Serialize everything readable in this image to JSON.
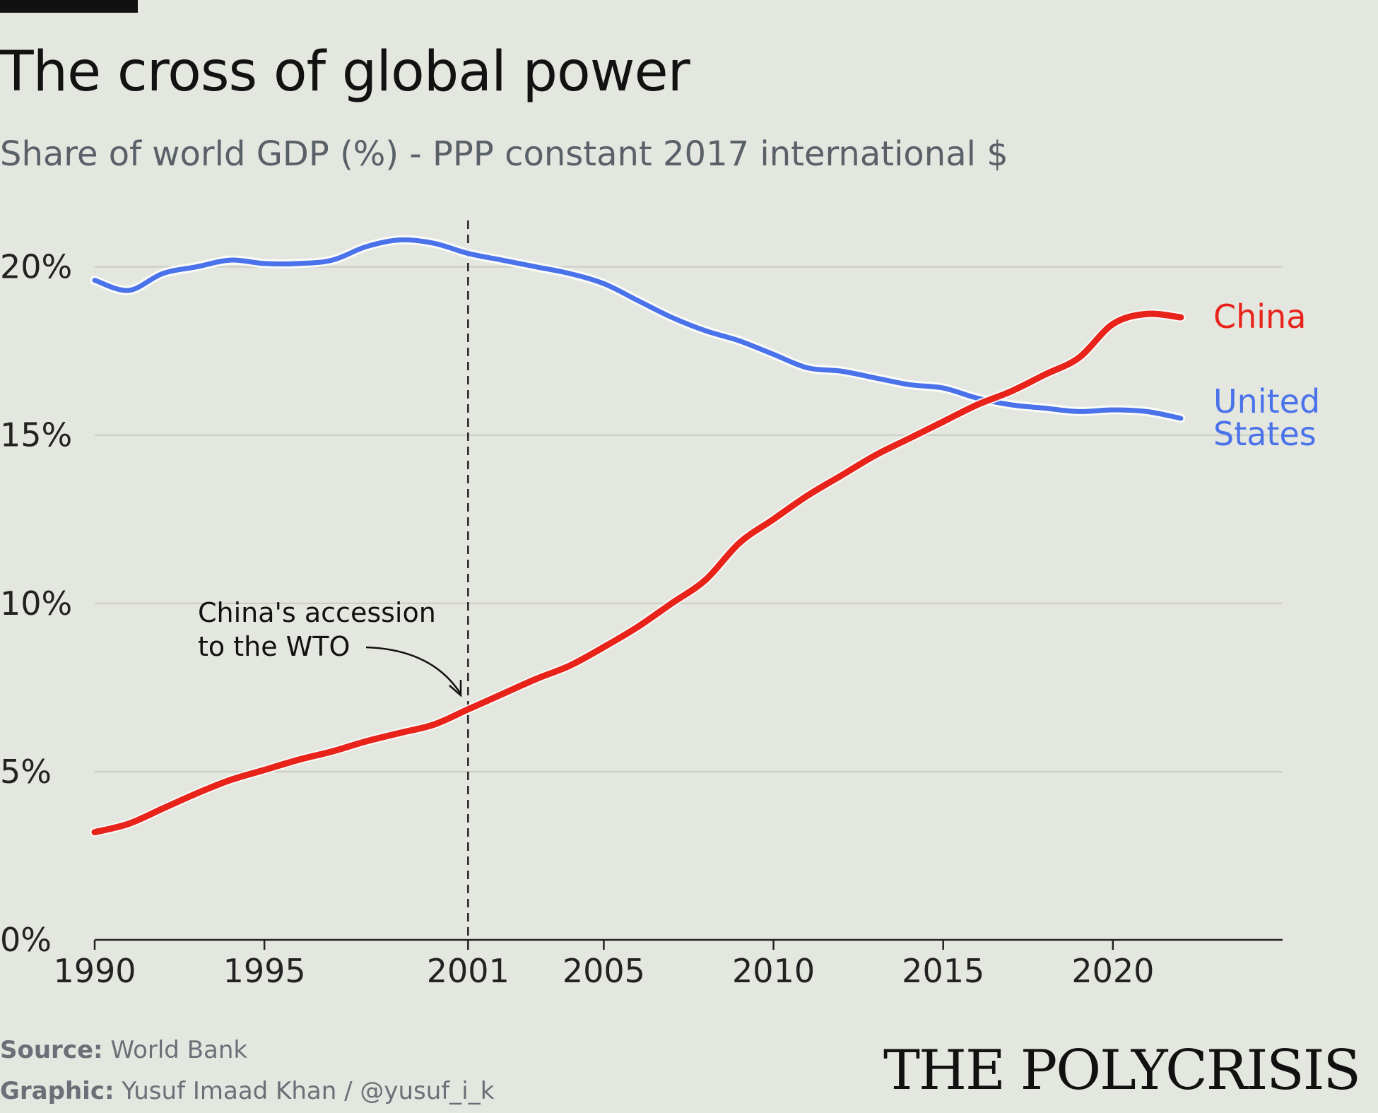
{
  "header": {
    "title": "The cross of global power",
    "subtitle": "Share of world GDP (%) - PPP constant 2017 international $"
  },
  "footer": {
    "source_label": "Source:",
    "source_value": "World Bank",
    "graphic_label": "Graphic:",
    "graphic_value": "Yusuf Imaad Khan / @yusuf_i_k",
    "brand": "THE POLYCRISIS"
  },
  "annotation": {
    "year": 2001,
    "line1": "China's accession",
    "line2": "to the WTO"
  },
  "colors": {
    "china": "#e8231a",
    "united_states": "#4a72ea",
    "grid": "#c9ccc3",
    "axis": "#222222",
    "background": "#e4e7df"
  },
  "chart_data": {
    "type": "line",
    "title": "The cross of global power",
    "subtitle": "Share of world GDP (%) - PPP constant 2017 international $",
    "xlabel": "",
    "ylabel": "",
    "xlim": [
      1990,
      2025
    ],
    "ylim": [
      0,
      21
    ],
    "x_ticks": [
      1990,
      1995,
      2001,
      2005,
      2010,
      2015,
      2020
    ],
    "x_tick_labels": [
      "1990",
      "1995",
      "2001",
      "2005",
      "2010",
      "2015",
      "2020"
    ],
    "y_ticks": [
      0,
      5,
      10,
      15,
      20
    ],
    "y_tick_labels": [
      "0%",
      "5%",
      "10%",
      "15%",
      "20%"
    ],
    "grid": true,
    "series": [
      {
        "name": "China",
        "label_lines": [
          "China"
        ],
        "color": "#e8231a",
        "x": [
          1990,
          1991,
          1992,
          1993,
          1994,
          1995,
          1996,
          1997,
          1998,
          1999,
          2000,
          2001,
          2002,
          2003,
          2004,
          2005,
          2006,
          2007,
          2008,
          2009,
          2010,
          2011,
          2012,
          2013,
          2014,
          2015,
          2016,
          2017,
          2018,
          2019,
          2020,
          2021,
          2022
        ],
        "values": [
          3.2,
          3.45,
          3.9,
          4.35,
          4.75,
          5.05,
          5.35,
          5.6,
          5.9,
          6.15,
          6.4,
          6.85,
          7.3,
          7.75,
          8.15,
          8.7,
          9.3,
          10.0,
          10.7,
          11.8,
          12.5,
          13.2,
          13.8,
          14.4,
          14.9,
          15.4,
          15.9,
          16.3,
          16.8,
          17.3,
          18.3,
          18.6,
          18.5
        ]
      },
      {
        "name": "United States",
        "label_lines": [
          "United",
          "States"
        ],
        "color": "#4a72ea",
        "x": [
          1990,
          1991,
          1992,
          1993,
          1994,
          1995,
          1996,
          1997,
          1998,
          1999,
          2000,
          2001,
          2002,
          2003,
          2004,
          2005,
          2006,
          2007,
          2008,
          2009,
          2010,
          2011,
          2012,
          2013,
          2014,
          2015,
          2016,
          2017,
          2018,
          2019,
          2020,
          2021,
          2022
        ],
        "values": [
          19.6,
          19.3,
          19.8,
          20.0,
          20.2,
          20.1,
          20.1,
          20.2,
          20.6,
          20.8,
          20.7,
          20.4,
          20.2,
          20.0,
          19.8,
          19.5,
          19.0,
          18.5,
          18.1,
          17.8,
          17.4,
          17.0,
          16.9,
          16.7,
          16.5,
          16.4,
          16.1,
          15.9,
          15.8,
          15.7,
          15.75,
          15.7,
          15.5
        ]
      }
    ]
  }
}
